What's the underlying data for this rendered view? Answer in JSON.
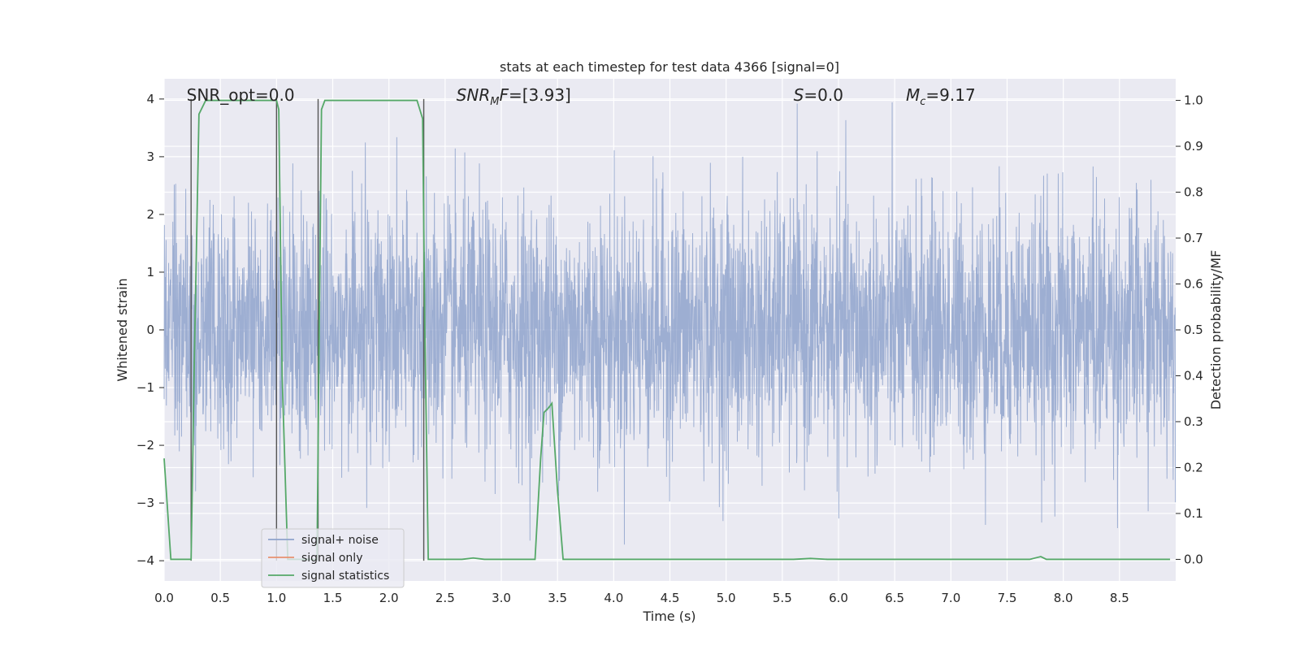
{
  "chart_data": {
    "type": "line",
    "title": "stats at each timestep for test data 4366 [signal=0]",
    "xlabel": "Time (s)",
    "ylabel": "Whitened strain",
    "y2label": "Detection probability/MF",
    "xlim": [
      0.0,
      9.0
    ],
    "ylim": [
      -4.35,
      4.35
    ],
    "y2lim": [
      -0.047,
      1.047
    ],
    "xticks": [
      "0.0",
      "0.5",
      "1.0",
      "1.5",
      "2.0",
      "2.5",
      "3.0",
      "3.5",
      "4.0",
      "4.5",
      "5.0",
      "5.5",
      "6.0",
      "6.5",
      "7.0",
      "7.5",
      "8.0",
      "8.5"
    ],
    "yticks": [
      "4",
      "3",
      "2",
      "1",
      "0",
      "−1",
      "−2",
      "−3",
      "−4"
    ],
    "y2ticks": [
      "1.0",
      "0.9",
      "0.8",
      "0.7",
      "0.6",
      "0.5",
      "0.4",
      "0.3",
      "0.2",
      "0.1",
      "0.0"
    ],
    "grid": true,
    "legend_position": "lower-left",
    "annotations": [
      {
        "id": "snr_opt",
        "text": "SNR_opt=0.0",
        "x": 0.2
      },
      {
        "id": "snr_mf",
        "text": "SNR",
        "sub": "M",
        "suffix": "F=[3.93]",
        "italic": true,
        "x": 2.6
      },
      {
        "id": "s",
        "text": "S",
        "suffix": "=0.0",
        "italic": true,
        "x": 5.6
      },
      {
        "id": "mc",
        "text": "M",
        "sub": "c",
        "suffix": "=9.17",
        "italic": true,
        "x": 6.6
      }
    ],
    "series": [
      {
        "name": "signal+ noise",
        "color": "#8fa3cc",
        "duration": 9.0,
        "peak_abs": 4.0
      },
      {
        "name": "signal only",
        "color": "#e8906f",
        "values": []
      },
      {
        "name": "signal statistics",
        "color": "#55a868",
        "x": [
          0.0,
          0.06,
          0.18,
          0.24,
          0.27,
          0.31,
          0.37,
          0.42,
          0.5,
          0.6,
          0.8,
          0.95,
          1.0,
          1.02,
          1.05,
          1.1,
          1.2,
          1.36,
          1.38,
          1.4,
          1.43,
          1.47,
          1.6,
          1.8,
          2.0,
          2.2,
          2.25,
          2.3,
          2.32,
          2.35,
          2.5,
          2.65,
          2.75,
          2.85,
          3.0,
          3.2,
          3.3,
          3.35,
          3.38,
          3.42,
          3.45,
          3.5,
          3.55,
          3.7,
          4.0,
          5.0,
          5.6,
          5.75,
          5.9,
          6.5,
          7.0,
          7.5,
          7.7,
          7.8,
          7.85,
          8.0,
          8.5,
          8.95
        ],
        "y": [
          0.22,
          0.0,
          0.0,
          0.0,
          0.45,
          0.97,
          1.0,
          1.0,
          1.0,
          1.0,
          1.0,
          1.0,
          1.0,
          0.98,
          0.4,
          0.0,
          0.0,
          0.0,
          0.5,
          0.98,
          1.0,
          1.0,
          1.0,
          1.0,
          1.0,
          1.0,
          1.0,
          0.96,
          0.5,
          0.0,
          0.0,
          0.0,
          0.003,
          0.0,
          0.0,
          0.0,
          0.0,
          0.22,
          0.32,
          0.33,
          0.34,
          0.15,
          0.0,
          0.0,
          0.0,
          0.0,
          0.0,
          0.002,
          0.0,
          0.0,
          0.0,
          0.0,
          0.0,
          0.006,
          0.0,
          0.0,
          0.0,
          0.0
        ]
      }
    ],
    "vlines": [
      0.24,
      1.0,
      1.37,
      2.31
    ]
  }
}
